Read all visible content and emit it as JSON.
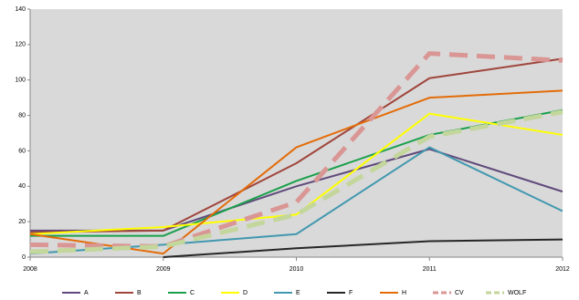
{
  "chart_data": {
    "type": "line",
    "categories": [
      "2008",
      "2009",
      "2010",
      "2011",
      "2012"
    ],
    "ylim": [
      0,
      140
    ],
    "yticks": [
      0,
      20,
      40,
      60,
      80,
      100,
      120,
      140
    ],
    "grid": false,
    "legend": "bottom",
    "series": [
      {
        "name": "A",
        "color": "#604a7b",
        "values": [
          15,
          15,
          40,
          61,
          37
        ]
      },
      {
        "name": "B",
        "color": "#a0453c",
        "values": [
          14,
          15,
          53,
          101,
          112
        ]
      },
      {
        "name": "C",
        "color": "#1aa04b",
        "values": [
          12,
          12,
          43,
          69,
          83
        ]
      },
      {
        "name": "D",
        "color": "#ffff00",
        "values": [
          13,
          17,
          24,
          81,
          69
        ]
      },
      {
        "name": "E",
        "color": "#4198af",
        "values": [
          2,
          7,
          13,
          62,
          26
        ]
      },
      {
        "name": "F",
        "color": "#262626",
        "values": [
          null,
          0,
          5,
          9,
          10
        ]
      },
      {
        "name": "H",
        "color": "#e36c09",
        "values": [
          13,
          2,
          62,
          90,
          94
        ]
      },
      {
        "name": "CV",
        "color": "#d99694",
        "dashed": true,
        "values": [
          7,
          6,
          31,
          115,
          111
        ]
      },
      {
        "name": "WOLF",
        "color": "#c3d69b",
        "dashed": true,
        "values": [
          3,
          6,
          24,
          68,
          82
        ]
      }
    ]
  }
}
